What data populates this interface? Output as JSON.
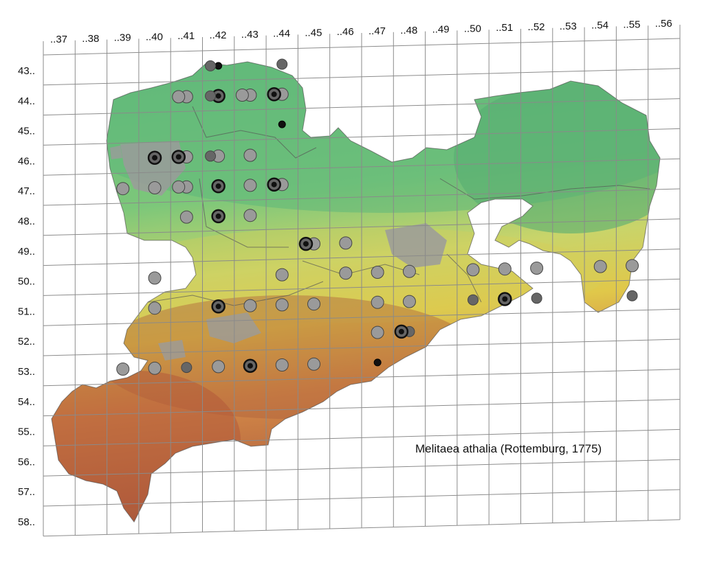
{
  "title": "Melitaea athalia (Rottemburg, 1775)",
  "columns": [
    "..37",
    "..38",
    "..39",
    "..40",
    "..41",
    "..42",
    "..43",
    "..44",
    "..45",
    "..46",
    "..47",
    "..48",
    "..49",
    "..50",
    "..51",
    "..52",
    "..53",
    "..54",
    "..55",
    "..56"
  ],
  "rows": [
    "43..",
    "44..",
    "45..",
    "46..",
    "47..",
    "48..",
    "49..",
    "50..",
    "51..",
    "52..",
    "53..",
    "54..",
    "55..",
    "56..",
    "57..",
    "58.."
  ],
  "colors": {
    "low_elevation": "#5fb87a",
    "mid_elevation": "#e0c84a",
    "high_elevation": "#b2583a",
    "urban": "#9b9b9b",
    "record_old": "#9a9a9a",
    "record_mid": "#666666",
    "record_recent": "#111111"
  },
  "record_types": [
    "old-record",
    "mid-record",
    "recent-record",
    "combined-record"
  ],
  "records": [
    {
      "grid": "4342",
      "type": "recent-record"
    },
    {
      "grid": "4342",
      "type": "mid-record"
    },
    {
      "grid": "4344",
      "type": "mid-record"
    },
    {
      "grid": "4441",
      "type": "old-record"
    },
    {
      "grid": "4442",
      "type": "combined-record"
    },
    {
      "grid": "4443",
      "type": "old-record"
    },
    {
      "grid": "4441",
      "type": "old-record"
    },
    {
      "grid": "4442",
      "type": "mid-record"
    },
    {
      "grid": "4444",
      "type": "old-record"
    },
    {
      "grid": "4443",
      "type": "old-record"
    },
    {
      "grid": "4444",
      "type": "combined-record"
    },
    {
      "grid": "4544",
      "type": "recent-record"
    },
    {
      "grid": "4641",
      "type": "old-record"
    },
    {
      "grid": "4642",
      "type": "old-record"
    },
    {
      "grid": "4643",
      "type": "old-record"
    },
    {
      "grid": "4640",
      "type": "combined-record"
    },
    {
      "grid": "4641",
      "type": "combined-record"
    },
    {
      "grid": "4642",
      "type": "mid-record"
    },
    {
      "grid": "4742",
      "type": "combined-record"
    },
    {
      "grid": "4741",
      "type": "old-record"
    },
    {
      "grid": "4744",
      "type": "old-record"
    },
    {
      "grid": "4744",
      "type": "combined-record"
    },
    {
      "grid": "4739",
      "type": "old-record"
    },
    {
      "grid": "4740",
      "type": "old-record"
    },
    {
      "grid": "4741",
      "type": "old-record"
    },
    {
      "grid": "4743",
      "type": "old-record"
    },
    {
      "grid": "4841",
      "type": "old-record"
    },
    {
      "grid": "4842",
      "type": "combined-record"
    },
    {
      "grid": "4843",
      "type": "old-record"
    },
    {
      "grid": "4945",
      "type": "old-record"
    },
    {
      "grid": "4946",
      "type": "old-record"
    },
    {
      "grid": "4945",
      "type": "combined-record"
    },
    {
      "grid": "5044",
      "type": "old-record"
    },
    {
      "grid": "5046",
      "type": "old-record"
    },
    {
      "grid": "5047",
      "type": "old-record"
    },
    {
      "grid": "5048",
      "type": "old-record"
    },
    {
      "grid": "5050",
      "type": "old-record"
    },
    {
      "grid": "5051",
      "type": "old-record"
    },
    {
      "grid": "5052",
      "type": "old-record"
    },
    {
      "grid": "5054",
      "type": "old-record"
    },
    {
      "grid": "5055",
      "type": "old-record"
    },
    {
      "grid": "5155",
      "type": "mid-record"
    },
    {
      "grid": "5040",
      "type": "old-record"
    },
    {
      "grid": "5143",
      "type": "old-record"
    },
    {
      "grid": "5144",
      "type": "old-record"
    },
    {
      "grid": "5145",
      "type": "old-record"
    },
    {
      "grid": "5140",
      "type": "old-record"
    },
    {
      "grid": "5142",
      "type": "combined-record"
    },
    {
      "grid": "5147",
      "type": "old-record"
    },
    {
      "grid": "5148",
      "type": "old-record"
    },
    {
      "grid": "5150",
      "type": "mid-record"
    },
    {
      "grid": "5151",
      "type": "combined-record"
    },
    {
      "grid": "5152",
      "type": "mid-record"
    },
    {
      "grid": "5248",
      "type": "mid-record"
    },
    {
      "grid": "5247",
      "type": "old-record"
    },
    {
      "grid": "5248",
      "type": "combined-record"
    },
    {
      "grid": "5339",
      "type": "old-record"
    },
    {
      "grid": "5340",
      "type": "old-record"
    },
    {
      "grid": "5341",
      "type": "mid-record"
    },
    {
      "grid": "5342",
      "type": "old-record"
    },
    {
      "grid": "5343",
      "type": "combined-record"
    },
    {
      "grid": "5344",
      "type": "old-record"
    },
    {
      "grid": "5345",
      "type": "old-record"
    },
    {
      "grid": "5347",
      "type": "recent-record"
    }
  ],
  "north_arrow": false
}
